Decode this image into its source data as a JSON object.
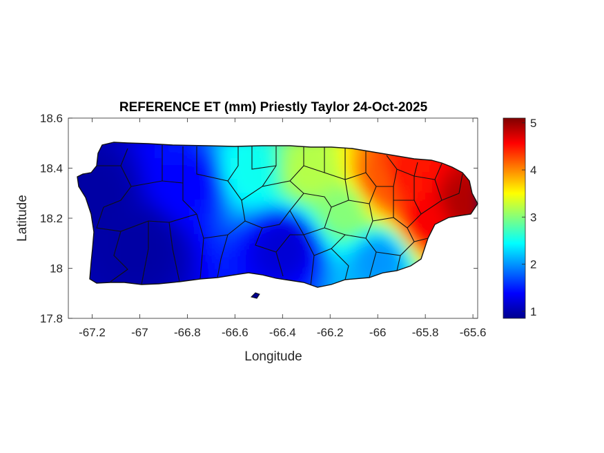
{
  "chart_data": {
    "type": "heatmap",
    "title": "REFERENCE ET (mm) Priestly Taylor 24-Oct-2025",
    "xlabel": "Longitude",
    "ylabel": "Latitude",
    "xlim": [
      -67.3,
      -65.58
    ],
    "ylim": [
      17.8,
      18.6
    ],
    "xticks": [
      "-67.2",
      "-67",
      "-66.8",
      "-66.6",
      "-66.4",
      "-66.2",
      "-66",
      "-65.8",
      "-65.6"
    ],
    "yticks": [
      "18.6",
      "18.4",
      "18.2",
      "18",
      "17.8"
    ],
    "colorbar": {
      "colormap": "jet",
      "range": [
        0.85,
        5.1
      ],
      "ticks": [
        "1",
        "2",
        "3",
        "4",
        "5"
      ]
    },
    "field_samples": [
      {
        "lon": -67.2,
        "lat": 18.3,
        "value": 1.0
      },
      {
        "lon": -67.0,
        "lat": 18.1,
        "value": 1.0
      },
      {
        "lon": -66.8,
        "lat": 18.35,
        "value": 1.4
      },
      {
        "lon": -66.55,
        "lat": 18.4,
        "value": 2.5
      },
      {
        "lon": -66.4,
        "lat": 18.1,
        "value": 1.2
      },
      {
        "lon": -66.3,
        "lat": 18.4,
        "value": 3.2
      },
      {
        "lon": -66.15,
        "lat": 18.25,
        "value": 3.0
      },
      {
        "lon": -66.0,
        "lat": 18.35,
        "value": 4.2
      },
      {
        "lon": -65.9,
        "lat": 18.38,
        "value": 4.5
      },
      {
        "lon": -65.8,
        "lat": 18.2,
        "value": 4.6
      },
      {
        "lon": -65.65,
        "lat": 18.27,
        "value": 4.9
      },
      {
        "lon": -66.0,
        "lat": 18.05,
        "value": 2.0
      }
    ]
  }
}
